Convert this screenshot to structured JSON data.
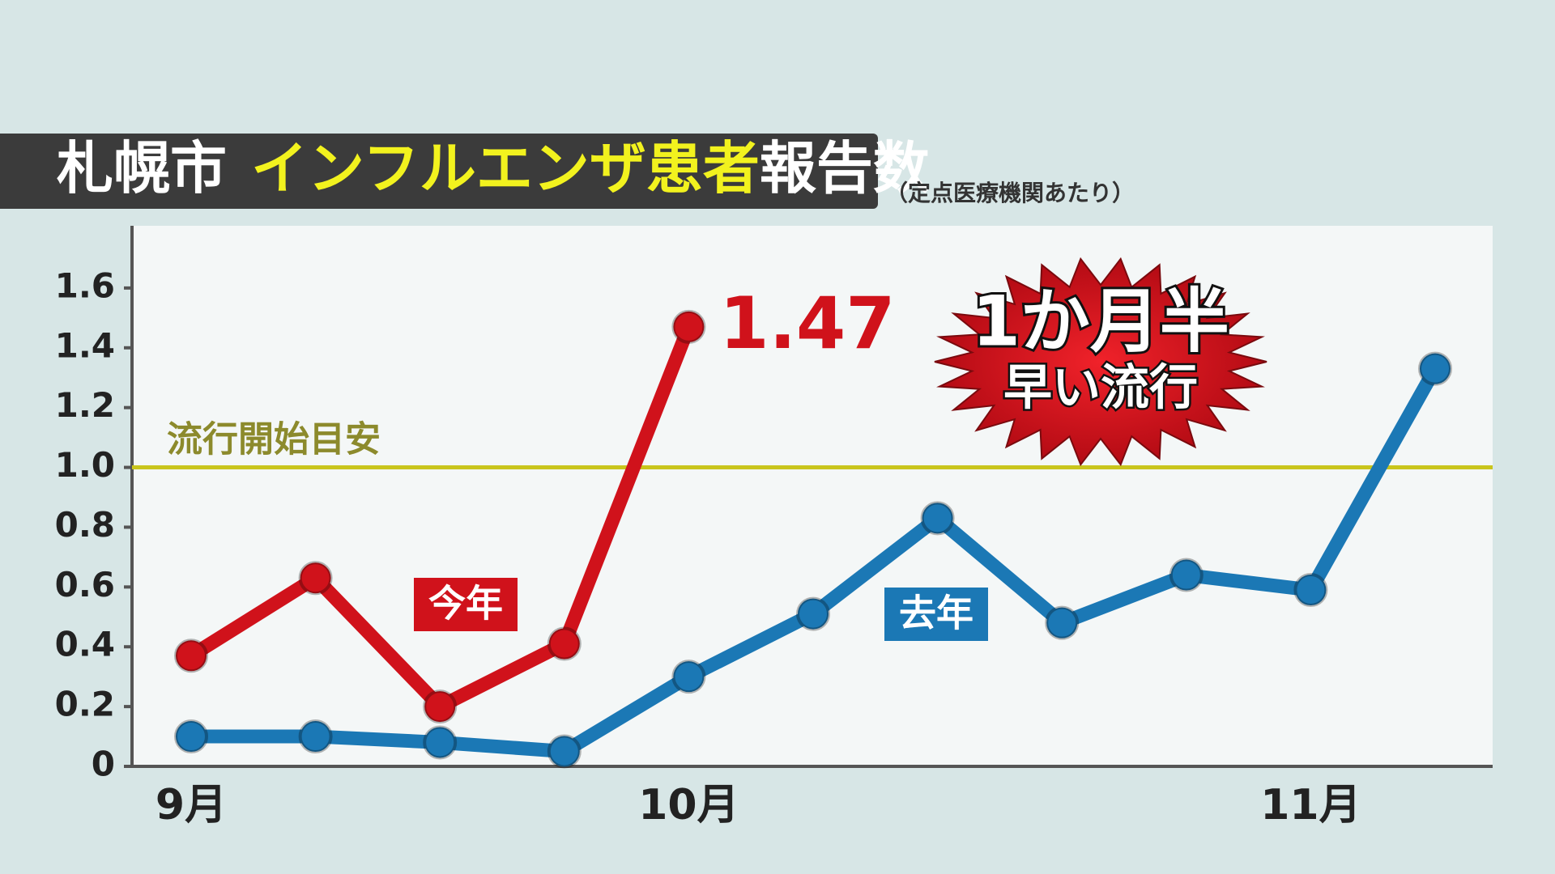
{
  "chart_data": {
    "type": "line",
    "title": {
      "place": "札幌市",
      "subject": "インフルエンザ患者",
      "metric": "報告数"
    },
    "subtitle": "（定点医療機関あたり）",
    "categories": [
      "9月",
      null,
      null,
      null,
      "10月",
      null,
      null,
      null,
      null,
      "11月",
      null
    ],
    "series": [
      {
        "name": "今年",
        "color": "#d0121b",
        "values": [
          0.37,
          0.63,
          0.2,
          0.41,
          1.47,
          null,
          null,
          null,
          null,
          null,
          null
        ]
      },
      {
        "name": "去年",
        "color": "#1b78b5",
        "values": [
          0.1,
          0.1,
          0.08,
          0.05,
          0.3,
          0.51,
          0.83,
          0.48,
          0.64,
          0.59,
          1.33
        ]
      }
    ],
    "ylim": [
      0,
      1.8
    ],
    "yticks": [
      0,
      0.2,
      0.4,
      0.6,
      0.8,
      {
        "value": 1,
        "label": "1.0"
      },
      1.2,
      1.4,
      1.6
    ],
    "threshold": {
      "value": 1,
      "label": "流行開始目安",
      "color": "#c9c51c"
    },
    "callout": [
      "1か月半",
      "早い流行"
    ]
  }
}
